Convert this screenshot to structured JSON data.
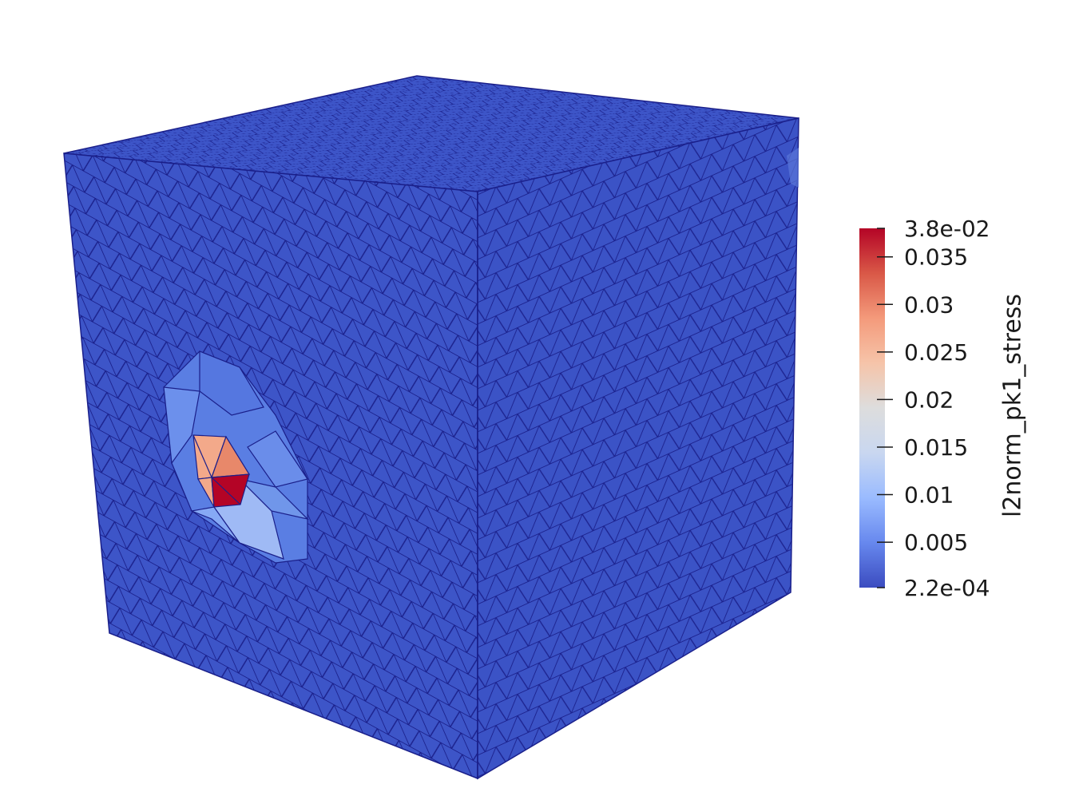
{
  "scalar_field": "l2norm_pk1_stress",
  "colorbar": {
    "title": "l2norm_pk1_stress",
    "min_label": "2.2e-04",
    "max_label": "3.8e-02",
    "min_value": 0.00022,
    "max_value": 0.038,
    "ticks": [
      {
        "value": 0.035,
        "label": "0.035"
      },
      {
        "value": 0.03,
        "label": "0.03"
      },
      {
        "value": 0.025,
        "label": "0.025"
      },
      {
        "value": 0.02,
        "label": "0.02"
      },
      {
        "value": 0.015,
        "label": "0.015"
      },
      {
        "value": 0.01,
        "label": "0.01"
      },
      {
        "value": 0.005,
        "label": "0.005"
      }
    ],
    "colormap": [
      "#3b4cc0",
      "#6788ee",
      "#9abbff",
      "#c9d7f0",
      "#dddddd",
      "#f6c4a9",
      "#f49a7b",
      "#d95847",
      "#b40426"
    ]
  },
  "mesh": {
    "background_color": "#3d55c8",
    "edge_color": "#1a1f8a",
    "hotspot_colors": [
      "#e8886a",
      "#f3a98a",
      "#b40426",
      "#9fbaf5",
      "#7096ea"
    ]
  }
}
